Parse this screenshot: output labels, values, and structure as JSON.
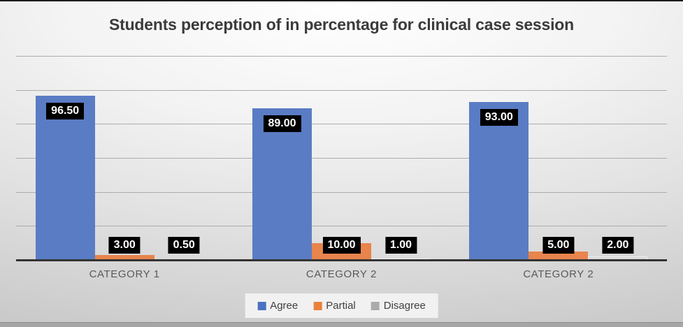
{
  "chart_data": {
    "type": "bar",
    "title": "Students perception of in percentage for clinical case session",
    "categories": [
      "CATEGORY 1",
      "CATEGORY 2",
      "CATEGORY 2"
    ],
    "series": [
      {
        "name": "Agree",
        "color": "#4b72c2",
        "bar_color": "#5a7cc4",
        "values": [
          96.5,
          89,
          93
        ],
        "labels": [
          "96.50",
          "89.00",
          "93.00"
        ]
      },
      {
        "name": "Partial",
        "color": "#ea803b",
        "bar_color": "#e8844c",
        "values": [
          3,
          10,
          5
        ],
        "labels": [
          "3.00",
          "10.00",
          "5.00"
        ]
      },
      {
        "name": "Disagree",
        "color": "#ababab",
        "bar_color": "#d9d9d9",
        "bar_border": "#f0f0f0",
        "values": [
          0.5,
          1,
          2
        ],
        "labels": [
          "0.50",
          "1.00",
          "2.00"
        ]
      }
    ],
    "xlabel": "",
    "ylabel": "",
    "ylim": [
      0,
      120
    ],
    "grid_step": 20,
    "grid": true,
    "legend_position": "bottom",
    "data_label_style": {
      "background": "#000000",
      "text": "#ffffff"
    }
  },
  "colors": {
    "grid": "#adadad",
    "axis": "#333333",
    "title_text": "#3b3b3b",
    "category_text": "#595959",
    "legend_bg": "#f1f1f1",
    "legend_text": "#404040",
    "slide_border_top": "#1c1c1c",
    "bottom_band": "#a6a6a6",
    "bottom_band_edge": "#8e8e8e"
  }
}
